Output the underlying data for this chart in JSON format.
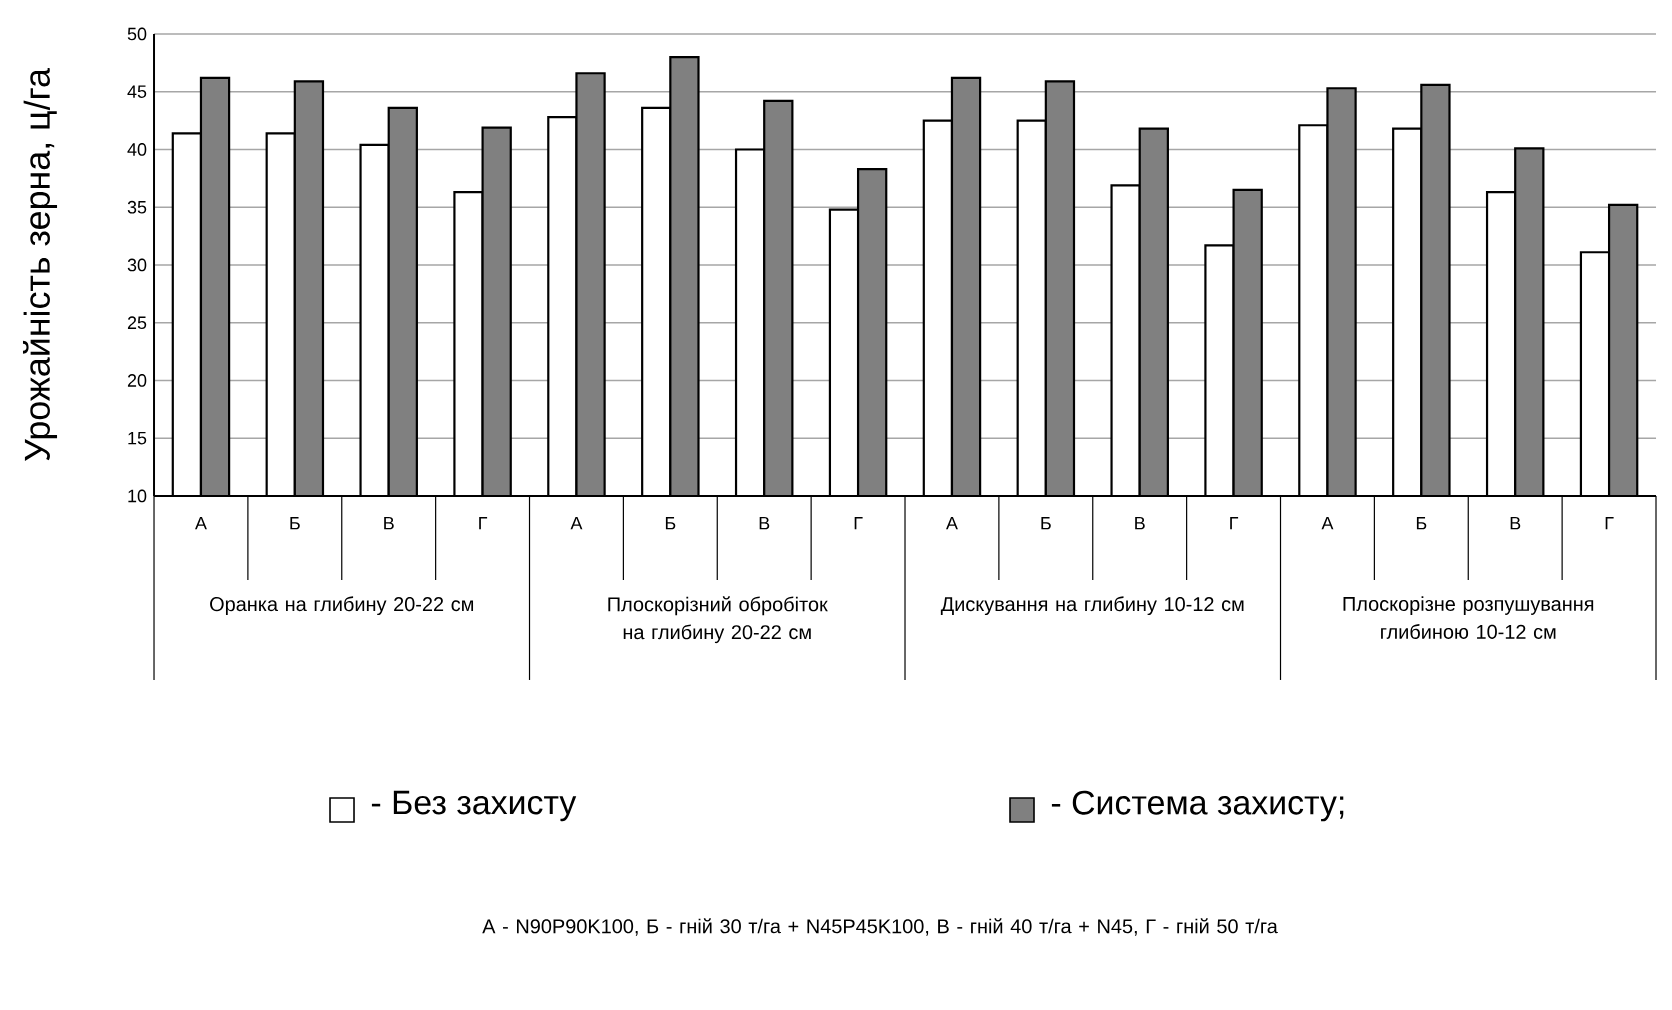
{
  "chart_data": {
    "type": "bar",
    "ylabel": "Урожайність зерна, ц/га",
    "categories": [
      "А",
      "Б",
      "В",
      "Г",
      "А",
      "Б",
      "В",
      "Г",
      "А",
      "Б",
      "В",
      "Г",
      "А",
      "Б",
      "В",
      "Г"
    ],
    "series": [
      {
        "name": "- Без захисту",
        "color": "#ffffff",
        "values": [
          41.4,
          41.4,
          40.4,
          36.3,
          42.8,
          43.6,
          40.0,
          34.8,
          42.5,
          42.5,
          36.9,
          31.7,
          42.1,
          41.8,
          36.3,
          31.1
        ]
      },
      {
        "name": "- Система захисту;",
        "color": "#808080",
        "values": [
          46.2,
          45.9,
          43.6,
          41.9,
          46.6,
          48.0,
          44.2,
          38.3,
          46.2,
          45.9,
          41.8,
          36.5,
          45.3,
          45.6,
          40.1,
          35.2
        ]
      }
    ],
    "ylim": [
      10,
      50
    ],
    "yticks": [
      10,
      15,
      20,
      25,
      30,
      35,
      40,
      45,
      50
    ],
    "grid": "y",
    "legend": "bottom",
    "annotations": [
      "Оранка на глибину 20-22 см",
      "Плоскорізний обробіток на глибину 20-22 см",
      "Дискування на глибину 10-12 см",
      "Плоскорізне розпушування глибиною 10-12 см",
      "А - N90P90K100, Б - гній 30 т/га + N45P45K100,  В - гній 40 т/га + N45, Г - гній 50 т/га"
    ]
  }
}
